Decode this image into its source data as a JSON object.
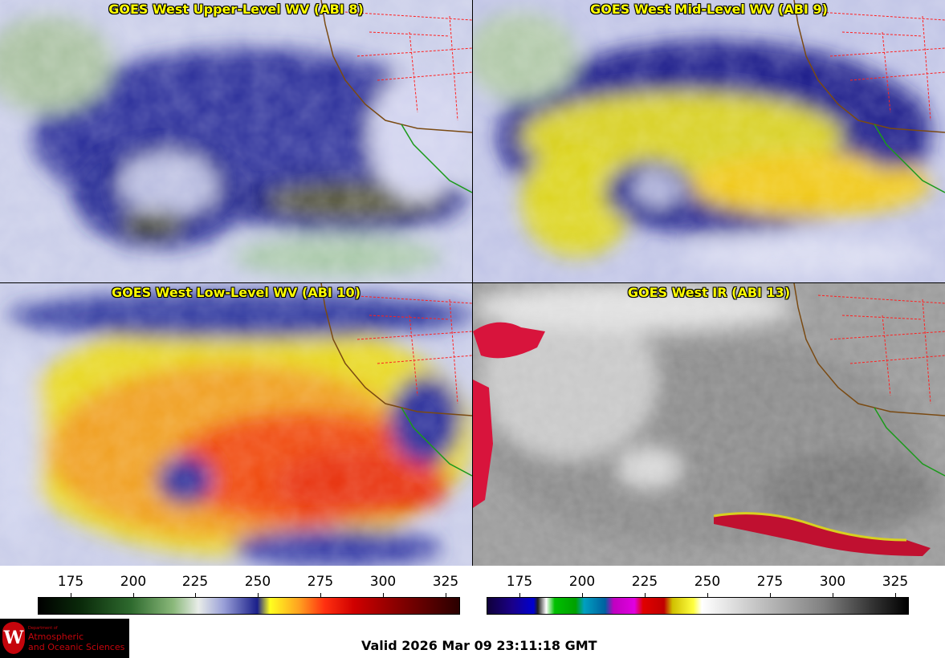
{
  "panels": [
    {
      "title": "GOES West Upper-Level WV (ABI 8)"
    },
    {
      "title": "GOES West Mid-Level WV (ABI 9)"
    },
    {
      "title": "GOES West Low-Level WV (ABI 10)"
    },
    {
      "title": "GOES West IR (ABI 13)"
    }
  ],
  "colorbars": [
    {
      "name": "water-vapor",
      "ticks": [
        "175",
        "200",
        "225",
        "250",
        "275",
        "300",
        "325"
      ]
    },
    {
      "name": "infrared",
      "ticks": [
        "175",
        "200",
        "225",
        "250",
        "275",
        "300",
        "325"
      ]
    }
  ],
  "footer": {
    "valid": "Valid 2026 Mar 09 23:11:18 GMT"
  },
  "logo": {
    "department": "Department of",
    "line1": "Atmospheric",
    "line2": "and Oceanic Sciences",
    "seal_letter": "W"
  },
  "colors": {
    "title": "#ffff00",
    "coast": "#7a4a12",
    "borders": "#ff2020",
    "baja": "#1a9a1a"
  }
}
